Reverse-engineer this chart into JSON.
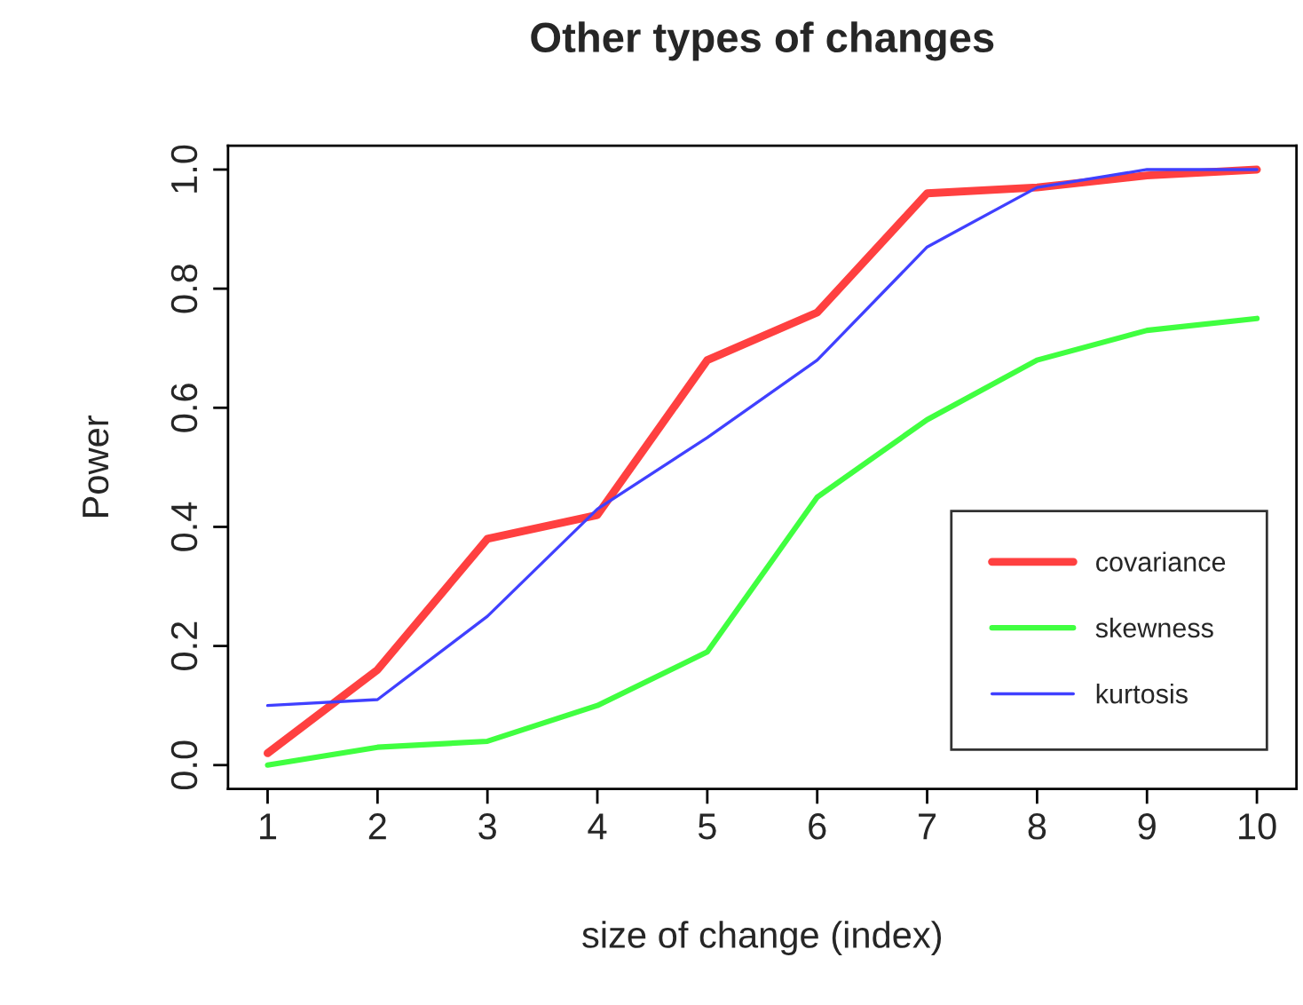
{
  "chart_data": {
    "type": "line",
    "title": "Other types of changes",
    "xlabel": "size of change (index)",
    "ylabel": "Power",
    "x": [
      1,
      2,
      3,
      4,
      5,
      6,
      7,
      8,
      9,
      10
    ],
    "series": [
      {
        "name": "covariance",
        "color": "#ff4040",
        "values": [
          0.02,
          0.16,
          0.38,
          0.42,
          0.68,
          0.76,
          0.96,
          0.97,
          0.99,
          1.0
        ]
      },
      {
        "name": "skewness",
        "color": "#40ff40",
        "values": [
          0.0,
          0.03,
          0.04,
          0.1,
          0.19,
          0.45,
          0.58,
          0.68,
          0.73,
          0.75
        ]
      },
      {
        "name": "kurtosis",
        "color": "#4040ff",
        "values": [
          0.1,
          0.11,
          0.25,
          0.43,
          0.55,
          0.68,
          0.87,
          0.97,
          1.0,
          1.0
        ]
      }
    ],
    "xlim": [
      0.64,
      10.36
    ],
    "xticks": [
      1,
      2,
      3,
      4,
      5,
      6,
      7,
      8,
      9,
      10
    ],
    "ylim": [
      -0.04,
      1.04
    ],
    "yticks": [
      {
        "value": 0,
        "label": "0.0"
      },
      {
        "value": 0.2,
        "label": "0.2"
      },
      {
        "value": 0.4,
        "label": "0.4"
      },
      {
        "value": 0.6,
        "label": "0.6"
      },
      {
        "value": 0.8,
        "label": "0.8"
      },
      {
        "value": 1.0,
        "label": "1.0"
      }
    ],
    "legend": "bottom right",
    "grid": false,
    "marker": "none",
    "line_style": "solid"
  }
}
